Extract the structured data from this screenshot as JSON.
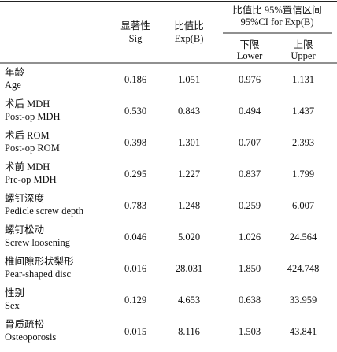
{
  "header": {
    "sig": [
      "显著性",
      "Sig"
    ],
    "exp": [
      "比值比",
      "Exp(B)"
    ],
    "ci": [
      "比值比 95%置信区间",
      "95%CI for Exp(B)"
    ],
    "lower": [
      "下限",
      "Lower"
    ],
    "upper": [
      "上限",
      "Upper"
    ]
  },
  "table": {
    "rows": [
      {
        "label": [
          "年龄",
          "Age"
        ],
        "values": [
          "0.186",
          "1.051",
          "0.976",
          "1.131"
        ]
      },
      {
        "label": [
          "术后 MDH",
          "Post-op MDH"
        ],
        "values": [
          "0.530",
          "0.843",
          "0.494",
          "1.437"
        ]
      },
      {
        "label": [
          "术后 ROM",
          "Post-op ROM"
        ],
        "values": [
          "0.398",
          "1.301",
          "0.707",
          "2.393"
        ]
      },
      {
        "label": [
          "术前 MDH",
          "Pre-op MDH"
        ],
        "values": [
          "0.295",
          "1.227",
          "0.837",
          "1.799"
        ]
      },
      {
        "label": [
          "螺钉深度",
          "Pedicle screw depth"
        ],
        "values": [
          "0.783",
          "1.248",
          "0.259",
          "6.007"
        ]
      },
      {
        "label": [
          "螺钉松动",
          "Screw loosening"
        ],
        "values": [
          "0.046",
          "5.020",
          "1.026",
          "24.564"
        ]
      },
      {
        "label": [
          "椎间隙形状梨形",
          "Pear-shaped disc"
        ],
        "values": [
          "0.016",
          "28.031",
          "1.850",
          "424.748"
        ]
      },
      {
        "label": [
          "性别",
          "Sex"
        ],
        "values": [
          "0.129",
          "4.653",
          "0.638",
          "33.959"
        ]
      },
      {
        "label": [
          "骨质疏松",
          "Osteoporosis"
        ],
        "values": [
          "0.015",
          "8.116",
          "1.503",
          "43.841"
        ]
      }
    ]
  }
}
